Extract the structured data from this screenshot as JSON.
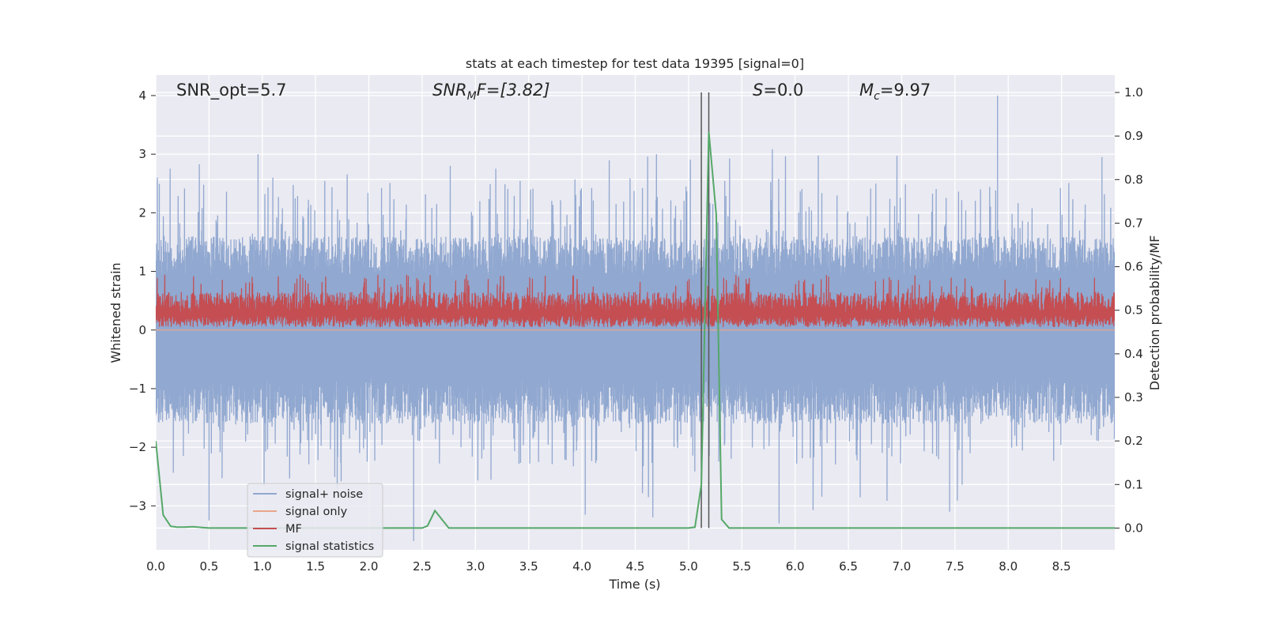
{
  "chart_data": {
    "type": "line",
    "title": "stats at each timestep for test data 19395 [signal=0]",
    "xlabel": "Time (s)",
    "ylabel_left": "Whitened strain",
    "ylabel_right": "Detection probability/MF",
    "xlim": [
      0,
      9.0
    ],
    "ylim_left": [
      -3.75,
      4.35
    ],
    "ylim_right": [
      -0.05,
      1.04
    ],
    "xticks": [
      "0.0",
      "0.5",
      "1.0",
      "1.5",
      "2.0",
      "2.5",
      "3.0",
      "3.5",
      "4.0",
      "4.5",
      "5.0",
      "5.5",
      "6.0",
      "6.5",
      "7.0",
      "7.5",
      "8.0",
      "8.5"
    ],
    "yticks_left": [
      "4",
      "3",
      "2",
      "1",
      "0",
      "−1",
      "−2",
      "−3"
    ],
    "yticks_right": [
      "1.0",
      "0.9",
      "0.8",
      "0.7",
      "0.6",
      "0.5",
      "0.4",
      "0.3",
      "0.2",
      "0.1",
      "0.0"
    ],
    "grid": true,
    "legend_position": "lower-left",
    "annotations": {
      "snr_opt": "SNR_opt=5.7",
      "snr_mf_main": "SNR",
      "snr_mf_sub": "M",
      "snr_mf_rest": "F=[3.82]",
      "s_main": "S",
      "s_rest": "=0.0",
      "mc_main": "M",
      "mc_sub": "c",
      "mc_rest": "=9.97"
    },
    "vertical_lines": [
      5.12,
      5.19
    ],
    "series": [
      {
        "name": "signal+ noise",
        "color": "#91a8d0",
        "axis": "left",
        "description": "noise envelope",
        "envelope": {
          "typical_upper": 1.6,
          "typical_lower": -1.4,
          "peak_upper": 4.0,
          "peak_lower": -3.6
        }
      },
      {
        "name": "signal only",
        "color": "#e8a58a",
        "axis": "left",
        "constant_value": 0.0
      },
      {
        "name": "MF",
        "color": "#c44e52",
        "axis": "left",
        "envelope": {
          "typical_upper": 0.65,
          "typical_lower": 0.05
        }
      },
      {
        "name": "signal statistics",
        "color": "#55a868",
        "axis": "right",
        "x": [
          0.0,
          0.07,
          0.14,
          0.2,
          0.27,
          0.35,
          0.5,
          1.0,
          2.0,
          2.5,
          2.55,
          2.62,
          2.75,
          3.0,
          4.0,
          5.0,
          5.06,
          5.12,
          5.19,
          5.26,
          5.31,
          5.38,
          5.5,
          6.0,
          7.0,
          8.0,
          9.0
        ],
        "y": [
          0.2,
          0.03,
          0.004,
          0.002,
          0.002,
          0.003,
          0.0,
          0.0,
          0.0,
          0.0,
          0.005,
          0.04,
          0.0,
          0.0,
          0.0,
          0.0,
          0.002,
          0.1,
          0.91,
          0.72,
          0.02,
          0.0,
          0.0,
          0.0,
          0.0,
          0.0,
          0.0
        ]
      }
    ]
  }
}
